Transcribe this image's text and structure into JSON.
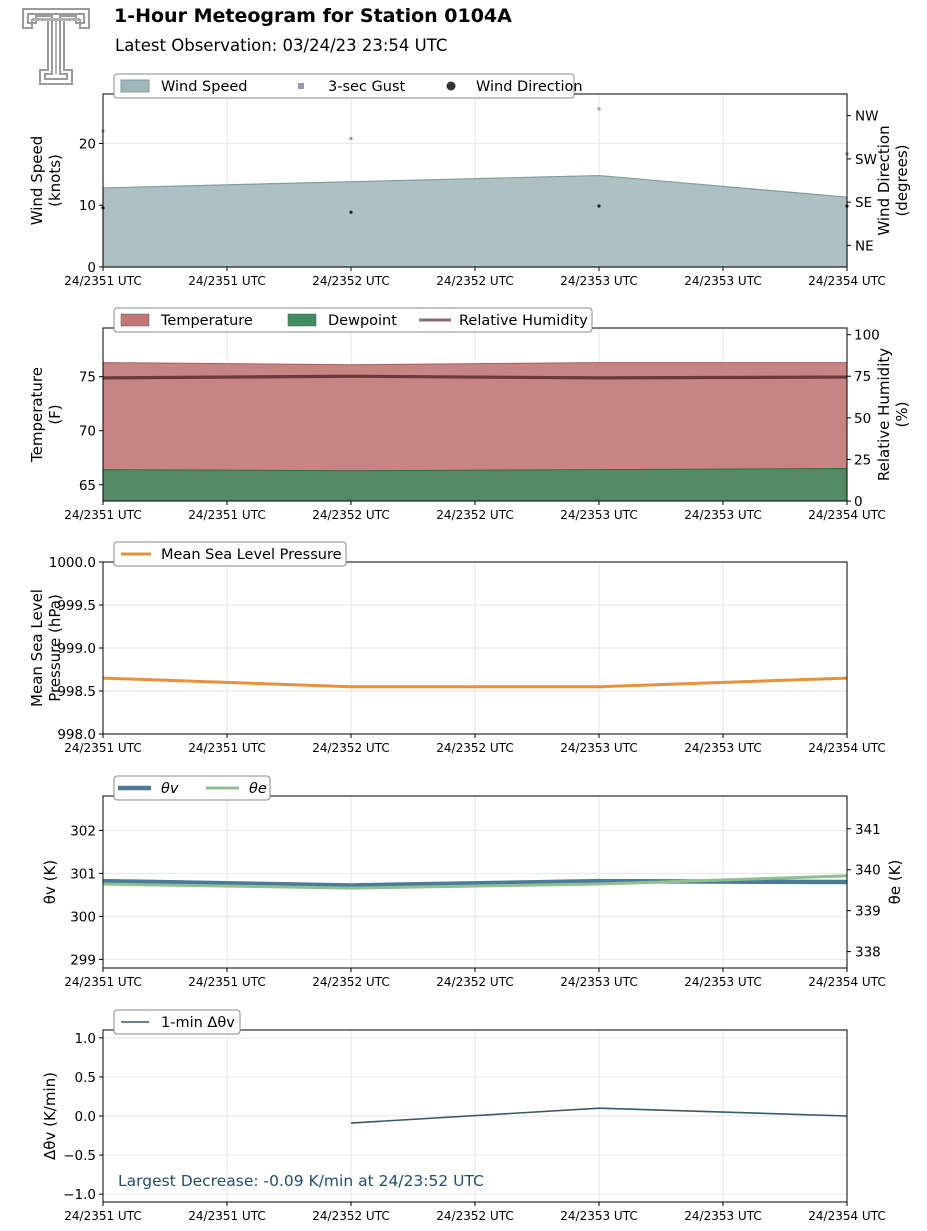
{
  "header": {
    "title": "1-Hour Meteogram for Station 0104A",
    "subtitle": "Latest Observation: 03/24/23 23:54 UTC",
    "logo_icon": "texas-tech-double-t-logo"
  },
  "colors": {
    "wind_speed": "#9fb6bb",
    "gust": "#9a9ab3",
    "wind_dir": "#333333",
    "temperature": "#c27676",
    "dewpoint": "#3f8c5e",
    "rh": "#6a3a3e",
    "pressure": "#e8903a",
    "theta_v": "#4a7b99",
    "theta_e": "#8fc08f",
    "dtheta": "#355a6e",
    "annotation": "#234e70"
  },
  "x_tick_labels": [
    "24/2351 UTC",
    "24/2351 UTC",
    "24/2352 UTC",
    "24/2352 UTC",
    "24/2353 UTC",
    "24/2353 UTC",
    "24/2354 UTC"
  ],
  "chart_data": [
    {
      "type": "area",
      "name": "wind",
      "x": [
        "24/23:51",
        "24/23:52",
        "24/23:53",
        "24/23:54"
      ],
      "series": [
        {
          "name": "Wind Speed",
          "kind": "area",
          "values": [
            12.8,
            13.8,
            14.8,
            11.3
          ]
        },
        {
          "name": "3-sec Gust",
          "kind": "scatter",
          "values": [
            22.0,
            20.8,
            25.6,
            18.3
          ]
        },
        {
          "name": "Wind Direction",
          "kind": "scatter",
          "axis": "right",
          "values": [
            123,
            114,
            127,
            127
          ]
        }
      ],
      "ylabel": "Wind Speed\n(knots)",
      "ylabel_right": "Wind Direction\n(degrees)",
      "ylim": [
        0,
        28
      ],
      "yticks": [
        "0",
        "10",
        "20"
      ],
      "ylim_right": [
        0,
        360
      ],
      "right_tick_values": [
        45,
        135,
        225,
        315
      ],
      "right_tick_labels": [
        "NE",
        "SE",
        "SW",
        "NW"
      ],
      "legend": [
        "Wind Speed",
        "3-sec Gust",
        "Wind Direction"
      ],
      "legend_position": "top-left",
      "grid": true
    },
    {
      "type": "area",
      "name": "thermo",
      "x": [
        "24/23:51",
        "24/23:52",
        "24/23:53",
        "24/23:54"
      ],
      "series": [
        {
          "name": "Temperature",
          "kind": "area",
          "values": [
            76.3,
            76.1,
            76.3,
            76.3
          ]
        },
        {
          "name": "Dewpoint",
          "kind": "area",
          "values": [
            66.4,
            66.3,
            66.4,
            66.5
          ]
        },
        {
          "name": "Relative Humidity",
          "kind": "line",
          "axis": "right",
          "values": [
            74,
            75,
            74,
            74.5
          ]
        }
      ],
      "ylabel": "Temperature\n(F)",
      "ylabel_right": "Relative Humidity\n(%)",
      "ylim": [
        63.5,
        79.5
      ],
      "yticks": [
        "65",
        "70",
        "75"
      ],
      "ylim_right": [
        0,
        104
      ],
      "yticks_right": [
        "0",
        "25",
        "50",
        "75",
        "100"
      ],
      "legend": [
        "Temperature",
        "Dewpoint",
        "Relative Humidity"
      ],
      "legend_position": "top-left",
      "grid": true
    },
    {
      "type": "line",
      "name": "pressure",
      "x": [
        "24/23:51",
        "24/23:52",
        "24/23:53",
        "24/23:54"
      ],
      "series": [
        {
          "name": "Mean Sea Level Pressure",
          "kind": "line",
          "values": [
            998.65,
            998.55,
            998.55,
            998.65
          ]
        }
      ],
      "ylabel": "Mean Sea Level\nPressure (hPa)",
      "ylim": [
        998.0,
        1000.0
      ],
      "yticks": [
        "998.0",
        "998.5",
        "999.0",
        "999.5",
        "1000.0"
      ],
      "legend": [
        "Mean Sea Level Pressure"
      ],
      "legend_position": "top-left",
      "grid": true
    },
    {
      "type": "line",
      "name": "theta",
      "x": [
        "24/23:51",
        "24/23:52",
        "24/23:53",
        "24/23:54"
      ],
      "series": [
        {
          "name": "θv",
          "kind": "line",
          "values": [
            300.82,
            300.72,
            300.82,
            300.8
          ]
        },
        {
          "name": "θe",
          "kind": "line",
          "axis": "right",
          "values": [
            339.65,
            339.55,
            339.65,
            339.85
          ]
        }
      ],
      "ylabel": "θv (K)",
      "ylabel_right": "θe (K)",
      "ylim": [
        298.8,
        302.8
      ],
      "yticks": [
        "299",
        "300",
        "301",
        "302"
      ],
      "ylim_right": [
        337.6,
        341.8
      ],
      "yticks_right": [
        "338",
        "339",
        "340",
        "341"
      ],
      "legend": [
        "θv",
        "θe"
      ],
      "legend_position": "top-left",
      "grid": true
    },
    {
      "type": "line",
      "name": "dtheta",
      "x": [
        "24/23:52",
        "24/23:53",
        "24/23:54"
      ],
      "series": [
        {
          "name": "1-min Δθv",
          "kind": "line",
          "values": [
            -0.09,
            0.1,
            0.0
          ]
        }
      ],
      "ylabel": "Δθv (K/min)",
      "ylim": [
        -1.1,
        1.1
      ],
      "yticks": [
        "−1.0",
        "−0.5",
        "0.0",
        "0.5",
        "1.0"
      ],
      "legend": [
        "1-min Δθv"
      ],
      "legend_position": "top-left",
      "annotation": "Largest Decrease: -0.09 K/min at 24/23:52 UTC",
      "grid": true
    }
  ]
}
